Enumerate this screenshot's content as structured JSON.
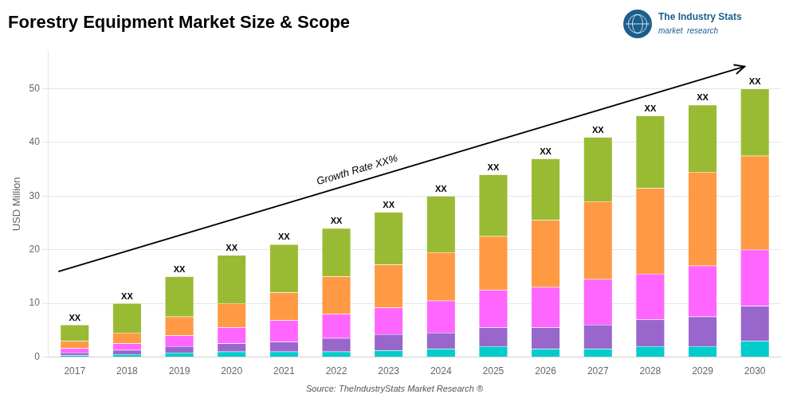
{
  "chart_data": {
    "type": "bar",
    "title": "Forestry Equipment Market Size & Scope",
    "ylabel": "USD Million",
    "source": "Source: TheIndustryStats Market Research ®",
    "categories": [
      "2017",
      "2018",
      "2019",
      "2020",
      "2021",
      "2022",
      "2023",
      "2024",
      "2025",
      "2026",
      "2027",
      "2028",
      "2029",
      "2030"
    ],
    "series": [
      {
        "color": "#00CCCC",
        "values": [
          0.3,
          0.5,
          0.8,
          1.0,
          1.0,
          1.0,
          1.2,
          1.5,
          2.0,
          1.5,
          1.5,
          2.0,
          2.0,
          3.0
        ]
      },
      {
        "color": "#9966CC",
        "values": [
          0.5,
          0.8,
          1.2,
          1.5,
          1.8,
          2.5,
          3.0,
          3.0,
          3.5,
          4.0,
          4.5,
          5.0,
          5.5,
          6.5
        ]
      },
      {
        "color": "#FF66FF",
        "values": [
          0.8,
          1.2,
          2.0,
          3.0,
          4.0,
          4.5,
          5.0,
          6.0,
          7.0,
          7.5,
          8.5,
          8.5,
          9.5,
          10.5
        ]
      },
      {
        "color": "#FF9944",
        "values": [
          1.4,
          2.0,
          3.5,
          4.5,
          5.2,
          7.0,
          8.0,
          9.0,
          10.0,
          12.5,
          14.5,
          16.0,
          17.5,
          17.5
        ]
      },
      {
        "color": "#99BB33",
        "values": [
          3.0,
          5.5,
          7.5,
          9.0,
          9.0,
          9.0,
          9.8,
          10.5,
          11.5,
          11.5,
          12.0,
          13.5,
          12.5,
          12.5
        ]
      }
    ],
    "stacked": true,
    "ylim": [
      0,
      57
    ],
    "yticks": [
      0,
      10,
      20,
      30,
      40,
      50
    ],
    "grid": true,
    "bar_labels": [
      "XX",
      "XX",
      "XX",
      "XX",
      "XX",
      "XX",
      "XX",
      "XX",
      "XX",
      "XX",
      "XX",
      "XX",
      "XX",
      "XX"
    ],
    "annotations": [
      "Growth Rate XX%"
    ],
    "logo": [
      "The Industry Stats",
      "market  research"
    ]
  }
}
